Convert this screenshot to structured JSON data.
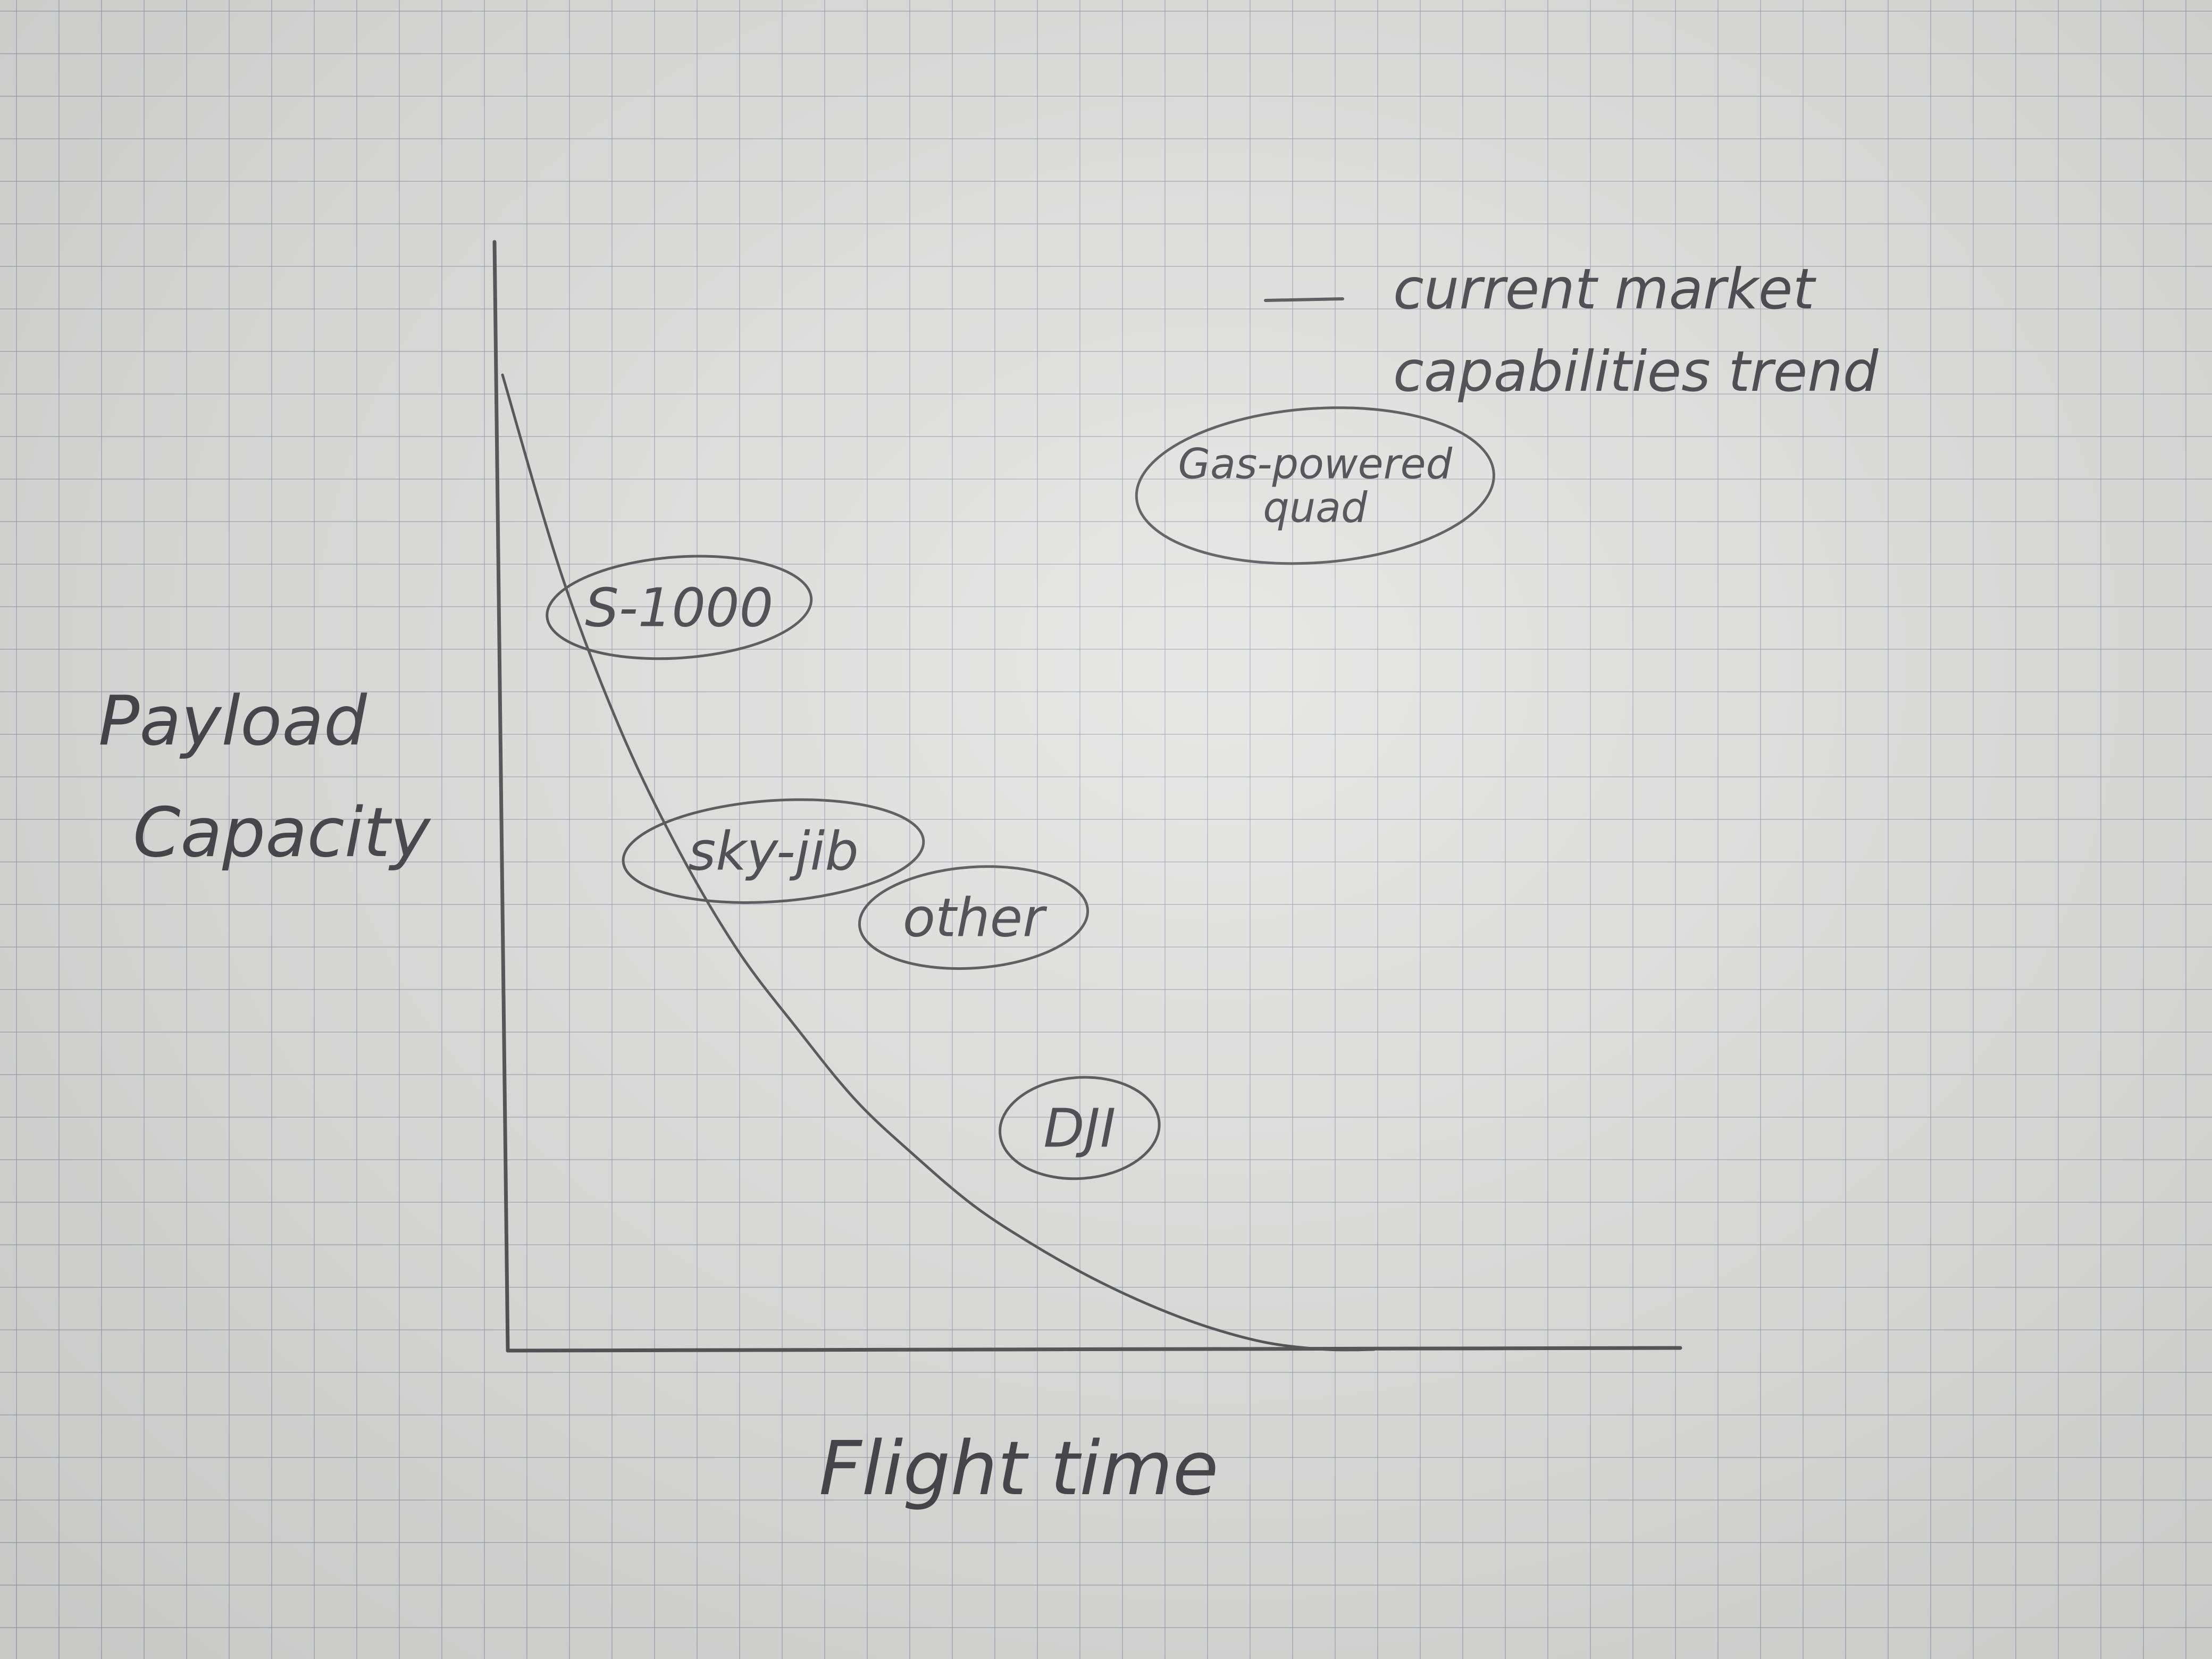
{
  "chart_data": {
    "type": "scatter",
    "xlabel": "Flight time",
    "ylabel_lines": [
      "Payload",
      "Capacity"
    ],
    "xlim": [
      0,
      10
    ],
    "ylim": [
      0,
      10
    ],
    "grid": false,
    "legend": {
      "placement": "top-right",
      "line_style": "line",
      "lines": [
        "current market",
        "capabilities trend"
      ]
    },
    "trend": {
      "name": "current market capabilities trend",
      "points": [
        [
          0.0,
          8.8
        ],
        [
          0.5,
          7.0
        ],
        [
          1.0,
          5.6
        ],
        [
          1.5,
          4.5
        ],
        [
          2.0,
          3.6
        ],
        [
          2.5,
          2.9
        ],
        [
          3.0,
          2.25
        ],
        [
          3.5,
          1.75
        ],
        [
          4.0,
          1.3
        ],
        [
          4.5,
          0.95
        ],
        [
          5.0,
          0.65
        ],
        [
          5.5,
          0.4
        ],
        [
          6.0,
          0.2
        ],
        [
          6.5,
          0.06
        ],
        [
          7.0,
          0.0
        ],
        [
          7.4,
          0.0
        ]
      ]
    },
    "points": [
      {
        "label": "S-1000",
        "x": 1.5,
        "y": 6.7
      },
      {
        "label": "sky-jib",
        "x": 2.3,
        "y": 4.5
      },
      {
        "label": "other",
        "x": 4.0,
        "y": 3.9
      },
      {
        "label": "DJI",
        "x": 4.9,
        "y": 2.0
      },
      {
        "label_lines": [
          "Gas-powered",
          "quad"
        ],
        "x": 6.9,
        "y": 7.8
      }
    ]
  }
}
